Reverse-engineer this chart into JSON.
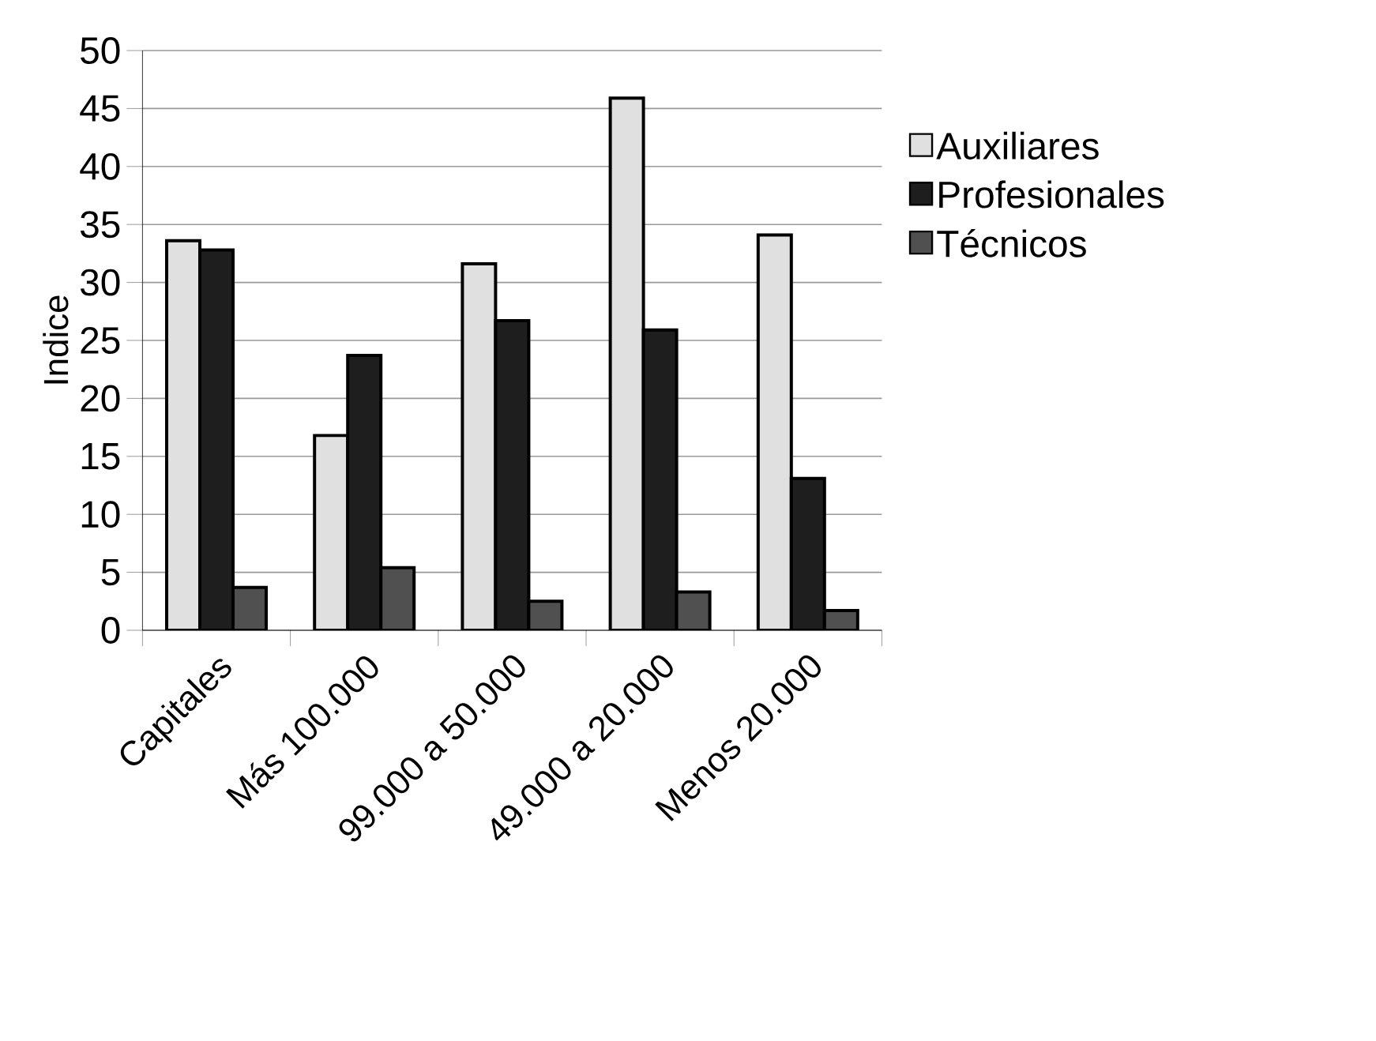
{
  "chart_data": {
    "type": "bar",
    "ylabel": "Indice",
    "categories": [
      "Capitales",
      "Más 100.000",
      "99.000 a 50.000",
      "49.000 a 20.000",
      "Menos 20.000"
    ],
    "series": [
      {
        "name": "Auxiliares",
        "color": "#e0e0e0",
        "values": [
          33.6,
          16.8,
          31.6,
          45.9,
          34.1
        ]
      },
      {
        "name": "Profesionales",
        "color": "#1e1e1e",
        "values": [
          32.8,
          23.7,
          26.7,
          25.9,
          13.1
        ]
      },
      {
        "name": "Técnicos",
        "color": "#505050",
        "values": [
          3.7,
          5.4,
          2.5,
          3.3,
          1.7
        ]
      }
    ],
    "ylim": [
      0,
      50
    ],
    "yticks": [
      0,
      5,
      10,
      15,
      20,
      25,
      30,
      35,
      40,
      45,
      50
    ],
    "grid": "y",
    "legend": "right"
  }
}
